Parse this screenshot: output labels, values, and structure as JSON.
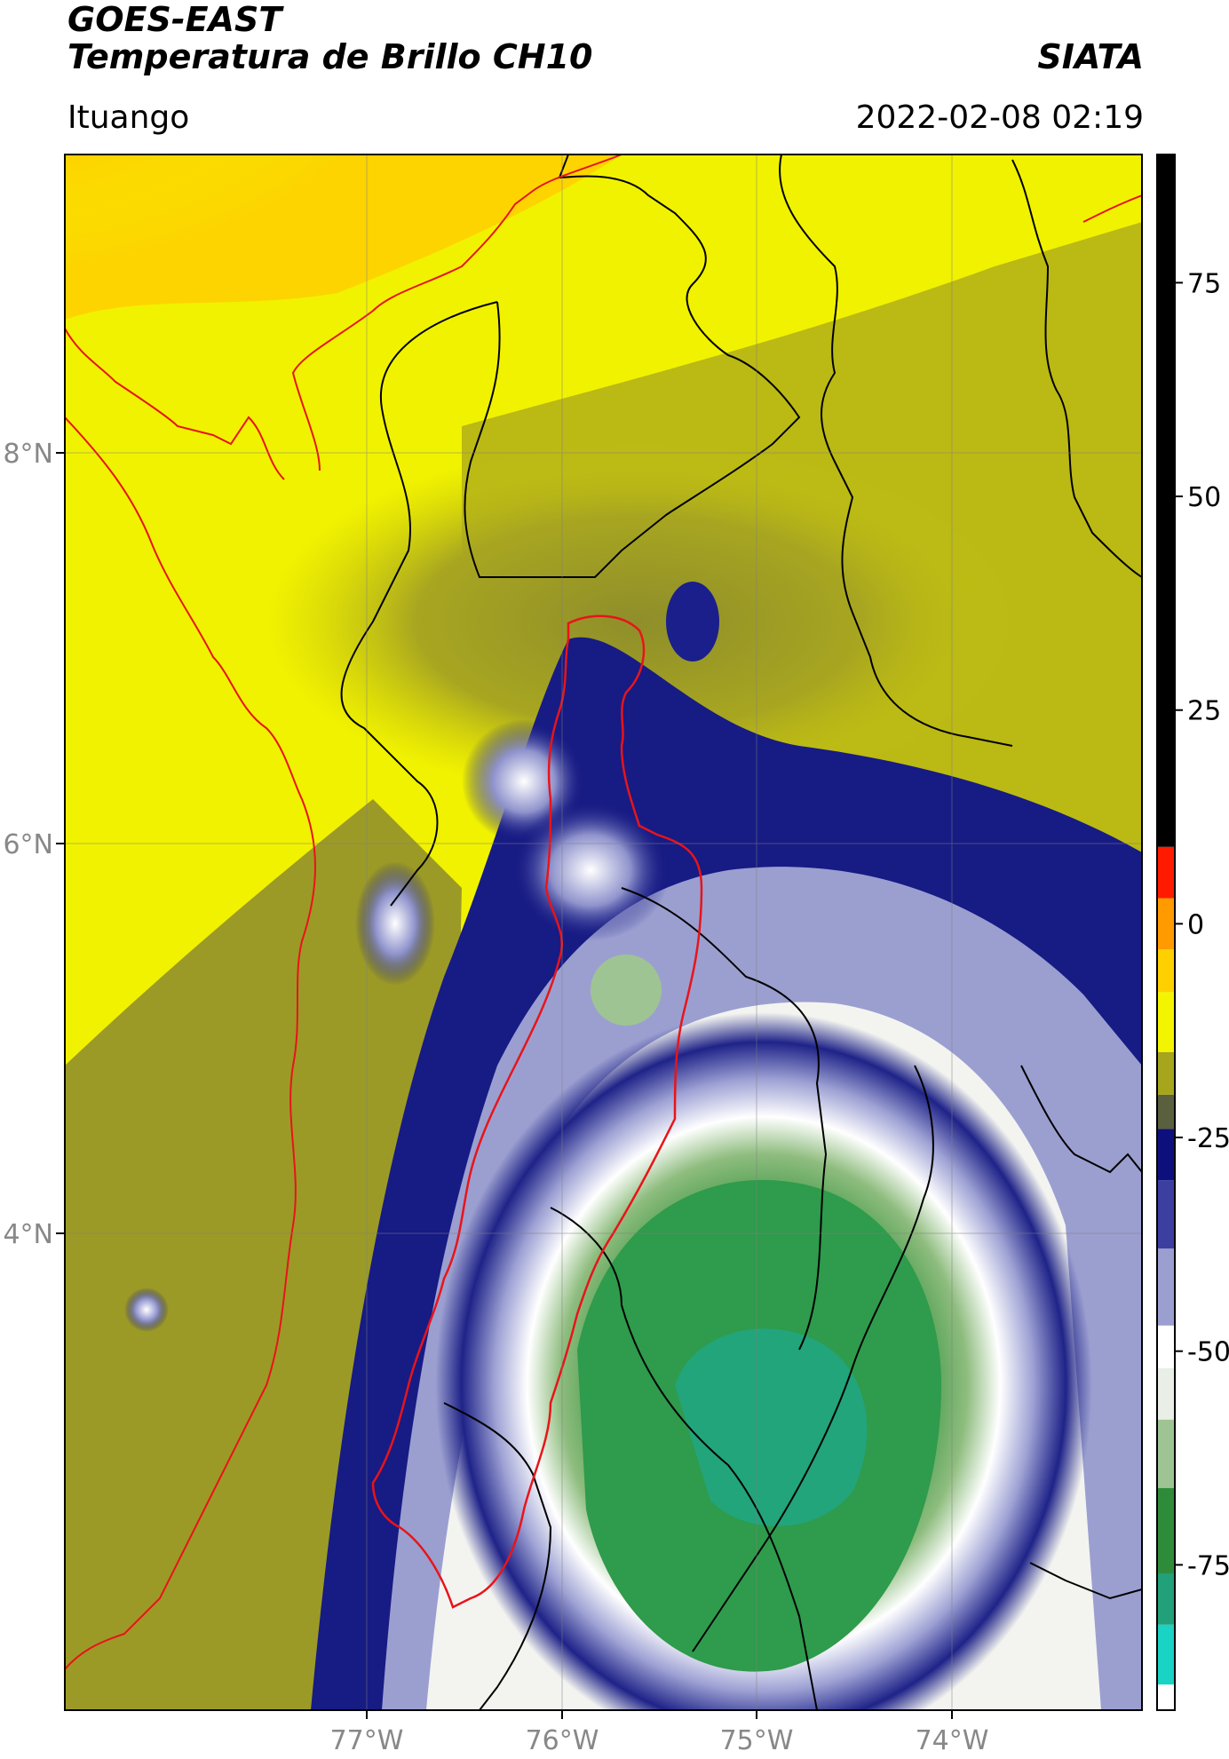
{
  "header": {
    "satellite": "GOES-EAST",
    "product": "Temperatura de Brillo CH10",
    "brand": "SIATA",
    "region": "Ituango",
    "timestamp": "2022-02-08 02:19"
  },
  "map": {
    "lon_labels": [
      "77°W",
      "76°W",
      "75°W",
      "74°W"
    ],
    "lat_labels": [
      "8°N",
      "6°N",
      "4°N"
    ],
    "gridlines": true
  },
  "colorbar": {
    "tick_labels": [
      "75",
      "50",
      "25",
      "0",
      "-25",
      "-50",
      "-75"
    ],
    "tick_values": [
      75,
      50,
      25,
      0,
      -25,
      -50,
      -75
    ],
    "range": [
      -92,
      90
    ],
    "segments": [
      {
        "from": -92,
        "to": -89,
        "color": "#ffffff"
      },
      {
        "from": -89,
        "to": -82,
        "color": "#19d3c5"
      },
      {
        "from": -82,
        "to": -76,
        "color": "#21a07a"
      },
      {
        "from": -76,
        "to": -66,
        "color": "#2e8b3a"
      },
      {
        "from": -66,
        "to": -58,
        "color": "#9fc493"
      },
      {
        "from": -58,
        "to": -52,
        "color": "#e9eee6"
      },
      {
        "from": -52,
        "to": -47,
        "color": "#ffffff"
      },
      {
        "from": -47,
        "to": -38,
        "color": "#9b9fd0"
      },
      {
        "from": -38,
        "to": -30,
        "color": "#3c3fa0"
      },
      {
        "from": -30,
        "to": -24,
        "color": "#0c0f7c"
      },
      {
        "from": -24,
        "to": -20,
        "color": "#5a5f3d"
      },
      {
        "from": -20,
        "to": -15,
        "color": "#a7a51b"
      },
      {
        "from": -15,
        "to": -8,
        "color": "#f3f500"
      },
      {
        "from": -8,
        "to": -3,
        "color": "#ffd000"
      },
      {
        "from": -3,
        "to": 3,
        "color": "#ff9a00"
      },
      {
        "from": 3,
        "to": 9,
        "color": "#ff1a00"
      },
      {
        "from": 9,
        "to": 90,
        "color": "#000000"
      }
    ]
  },
  "colors": {
    "coastline": "#e8141a",
    "borders": "#000000",
    "region_outline": "#e8141a"
  }
}
